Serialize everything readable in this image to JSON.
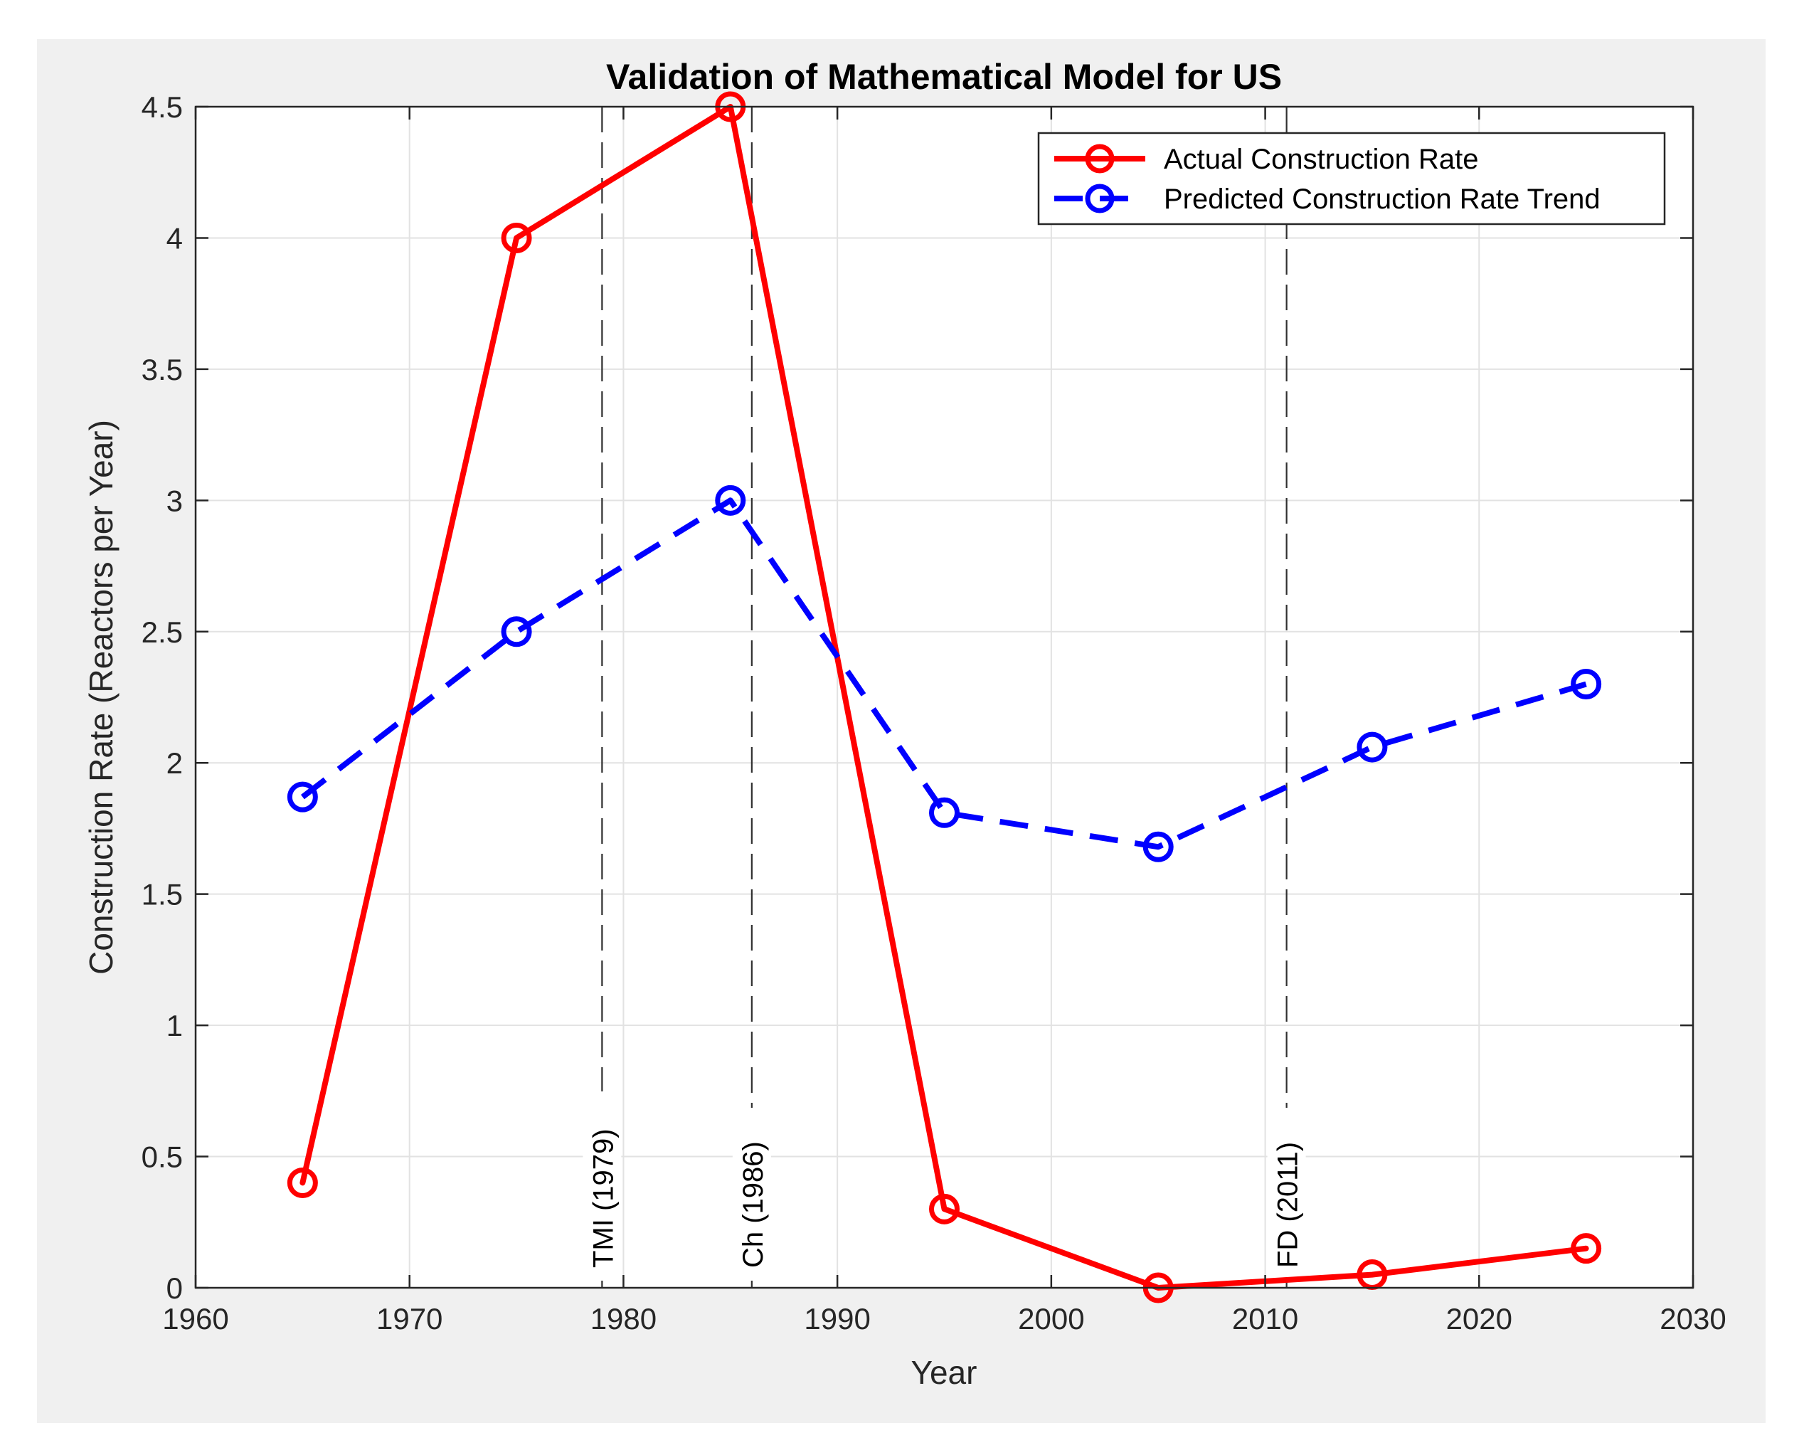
{
  "chart_data": {
    "type": "line",
    "title": "Validation of Mathematical Model for US",
    "xlabel": "Year",
    "ylabel": "Construction Rate (Reactors per Year)",
    "xlim": [
      1960,
      2030
    ],
    "ylim": [
      0,
      4.5
    ],
    "xticks": [
      1960,
      1970,
      1980,
      1990,
      2000,
      2010,
      2020,
      2030
    ],
    "yticks": [
      0,
      0.5,
      1,
      1.5,
      2,
      2.5,
      3,
      3.5,
      4,
      4.5
    ],
    "ytick_labels": [
      "0",
      "0.5",
      "1",
      "1.5",
      "2",
      "2.5",
      "3",
      "3.5",
      "4",
      "4.5"
    ],
    "grid": true,
    "legend_position": "top-right",
    "series": [
      {
        "name": "Actual Construction Rate",
        "color": "#ff0000",
        "style": "solid",
        "marker": "circle",
        "x": [
          1965,
          1975,
          1985,
          1995,
          2005,
          2015,
          2025
        ],
        "values": [
          0.4,
          4.0,
          4.5,
          0.3,
          0.0,
          0.05,
          0.15
        ]
      },
      {
        "name": "Predicted Construction Rate Trend",
        "color": "#0000ff",
        "style": "dashed",
        "marker": "circle",
        "x": [
          1965,
          1975,
          1985,
          1995,
          2005,
          2015,
          2025
        ],
        "values": [
          1.87,
          2.5,
          3.0,
          1.81,
          1.68,
          2.06,
          2.3
        ]
      }
    ],
    "events": [
      {
        "x": 1979,
        "label": "TMI (1979)"
      },
      {
        "x": 1986,
        "label": "Ch (1986)"
      },
      {
        "x": 2011,
        "label": "FD (2011)"
      }
    ]
  }
}
